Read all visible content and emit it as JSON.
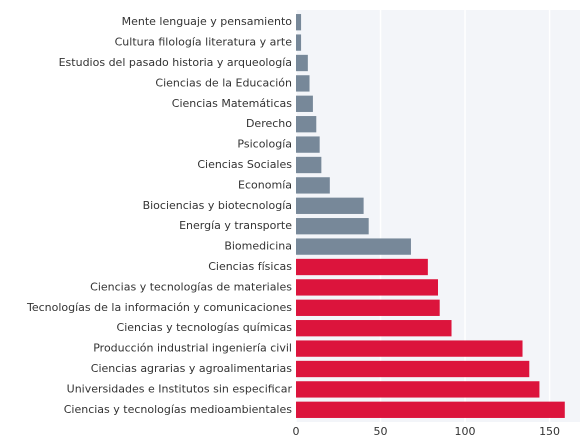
{
  "chart_data": {
    "type": "bar",
    "orientation": "horizontal",
    "categories": [
      "Mente lenguaje y pensamiento",
      "Cultura filología literatura y arte",
      "Estudios del pasado historia y arqueología",
      "Ciencias de la Educación",
      "Ciencias Matemáticas",
      "Derecho",
      "Psicología",
      "Ciencias Sociales",
      "Economía",
      "Biociencias y biotecnología",
      "Energía y transporte",
      "Biomedicina",
      "Ciencias físicas",
      "Ciencias y tecnologías de materiales",
      "Tecnologías de la información y comunicaciones",
      "Ciencias y tecnologías químicas",
      "Producción industrial ingeniería civil",
      "Ciencias agrarias y agroalimentarias",
      "Universidades e Institutos sin especificar",
      "Ciencias y tecnologías medioambientales"
    ],
    "values": [
      3,
      3,
      7,
      8,
      10,
      12,
      14,
      15,
      20,
      40,
      43,
      68,
      78,
      84,
      85,
      92,
      134,
      138,
      144,
      159
    ],
    "colors": [
      "#778899",
      "#778899",
      "#778899",
      "#778899",
      "#778899",
      "#778899",
      "#778899",
      "#778899",
      "#778899",
      "#778899",
      "#778899",
      "#778899",
      "#dc143c",
      "#dc143c",
      "#dc143c",
      "#dc143c",
      "#dc143c",
      "#dc143c",
      "#dc143c",
      "#dc143c"
    ],
    "xlim": [
      0,
      168
    ],
    "xticks": [
      0,
      50,
      100,
      150
    ],
    "grid": true
  }
}
